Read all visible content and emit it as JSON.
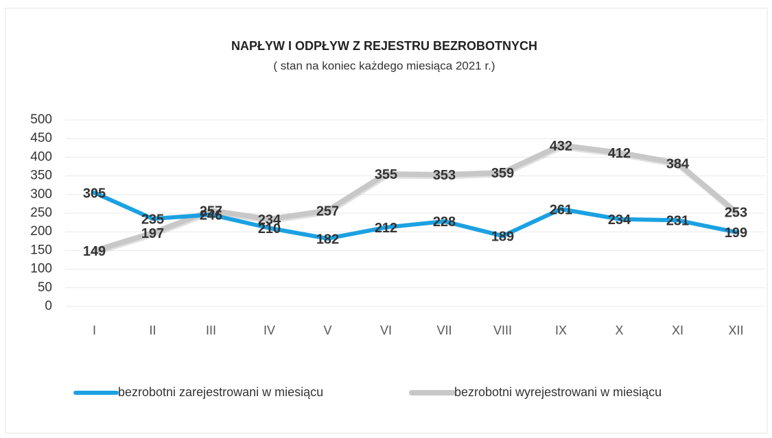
{
  "chart_data": {
    "type": "line",
    "title": "NAPŁYW  I ODPŁYW Z REJESTRU BEZROBOTNYCH",
    "subtitle": "( stan  na  koniec każdego miesiąca  2021 r.)",
    "categories": [
      "I",
      "II",
      "III",
      "IV",
      "V",
      "VI",
      "VII",
      "VIII",
      "IX",
      "X",
      "XI",
      "XII"
    ],
    "series": [
      {
        "name": "bezrobotni zarejestrowani  w miesiącu",
        "color": "#1ba1e2",
        "values": [
          305,
          235,
          246,
          210,
          182,
          212,
          228,
          189,
          261,
          234,
          231,
          199
        ]
      },
      {
        "name": "bezrobotni wyrejestrowani w miesiącu",
        "color": "#c8c8c8",
        "values": [
          149,
          197,
          257,
          234,
          257,
          355,
          353,
          359,
          432,
          412,
          384,
          253
        ]
      }
    ],
    "ylim": [
      0,
      500
    ],
    "yticks": [
      0,
      50,
      100,
      150,
      200,
      250,
      300,
      350,
      400,
      450,
      500
    ],
    "grid": true
  }
}
